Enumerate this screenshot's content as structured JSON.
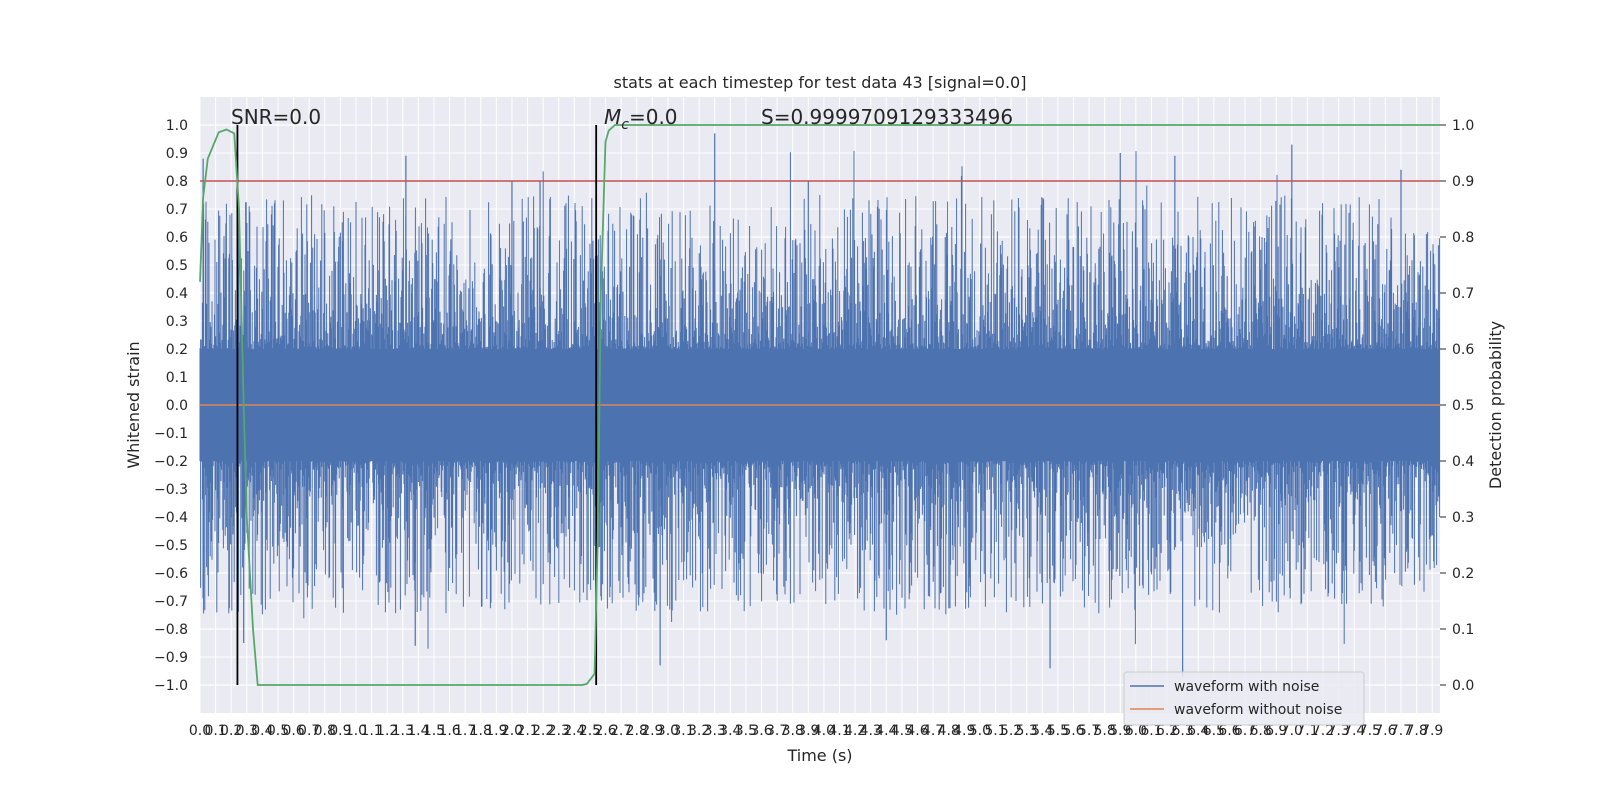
{
  "chart_data": {
    "type": "line",
    "title": "stats at each timestep for test data 43 [signal=0.0]",
    "xlabel": "Time (s)",
    "ylabel": "Whitened strain",
    "ylabel_right": "Detection probability",
    "xlim": [
      0.0,
      7.95
    ],
    "ylim": [
      -1.1,
      1.1
    ],
    "ylim_right": [
      -0.05,
      1.05
    ],
    "x_ticks": [
      "0.0",
      "0.1",
      "0.2",
      "0.3",
      "0.4",
      "0.5",
      "0.6",
      "0.7",
      "0.8",
      "0.9",
      "1.0",
      "1.1",
      "1.2",
      "1.3",
      "1.4",
      "1.5",
      "1.6",
      "1.7",
      "1.8",
      "1.9",
      "2.0",
      "2.1",
      "2.2",
      "2.3",
      "2.4",
      "2.5",
      "2.6",
      "2.7",
      "2.8",
      "2.9",
      "3.0",
      "3.1",
      "3.2",
      "3.3",
      "3.4",
      "3.5",
      "3.6",
      "3.7",
      "3.8",
      "3.9",
      "4.0",
      "4.1",
      "4.2",
      "4.3",
      "4.4",
      "4.5",
      "4.6",
      "4.7",
      "4.8",
      "4.9",
      "5.0",
      "5.1",
      "5.2",
      "5.3",
      "5.4",
      "5.5",
      "5.6",
      "5.7",
      "5.8",
      "5.9",
      "6.0",
      "6.1",
      "6.2",
      "6.3",
      "6.4",
      "6.5",
      "6.6",
      "6.7",
      "6.8",
      "6.9",
      "7.0",
      "7.1",
      "7.2",
      "7.3",
      "7.4",
      "7.5",
      "7.6",
      "7.7",
      "7.8",
      "7.9"
    ],
    "y_ticks": [
      "1.0",
      "0.9",
      "0.8",
      "0.7",
      "0.6",
      "0.5",
      "0.4",
      "0.3",
      "0.2",
      "0.1",
      "0.0",
      "-0.1",
      "-0.2",
      "-0.3",
      "-0.4",
      "-0.5",
      "-0.6",
      "-0.7",
      "-0.8",
      "-0.9",
      "-1.0"
    ],
    "y_ticks_right": [
      "1.0",
      "0.9",
      "0.8",
      "0.7",
      "0.6",
      "0.5",
      "0.4",
      "0.3",
      "0.2",
      "0.1",
      "0.0"
    ],
    "annotations": {
      "snr": "SNR=0.0",
      "mc_symbol": "M",
      "mc_sub": "c",
      "mc_value": "=0.0",
      "s": "S=0.9999709129333496"
    },
    "series": [
      {
        "name": "waveform with noise",
        "axis": "left",
        "color": "#4c72b0",
        "style": "dense noise band",
        "y_range": [
          -0.97,
          0.98
        ],
        "spikes": [
          {
            "x": 0.02,
            "y": 0.88
          },
          {
            "x": 0.02,
            "y": -0.69
          },
          {
            "x": 0.28,
            "y": -0.85
          },
          {
            "x": 0.3,
            "y": 0.65
          },
          {
            "x": 1.32,
            "y": 0.89
          },
          {
            "x": 1.38,
            "y": -0.86
          },
          {
            "x": 2.0,
            "y": 0.8
          },
          {
            "x": 2.18,
            "y": 0.8
          },
          {
            "x": 2.95,
            "y": -0.93
          },
          {
            "x": 3.3,
            "y": 0.97
          },
          {
            "x": 3.9,
            "y": 0.8
          },
          {
            "x": 4.4,
            "y": -0.84
          },
          {
            "x": 5.45,
            "y": -0.94
          },
          {
            "x": 5.9,
            "y": 0.9
          },
          {
            "x": 6.25,
            "y": 0.89
          },
          {
            "x": 6.3,
            "y": -0.97
          },
          {
            "x": 7.0,
            "y": 0.93
          },
          {
            "x": 7.7,
            "y": 0.84
          }
        ]
      },
      {
        "name": "waveform without noise",
        "axis": "left",
        "color": "#dd8452",
        "y": 0.0
      },
      {
        "name": "detection probability",
        "axis": "right",
        "color": "#55a868",
        "x": [
          0.0,
          0.02,
          0.05,
          0.12,
          0.17,
          0.22,
          0.25,
          0.28,
          0.3,
          0.34,
          0.37,
          1.0,
          2.0,
          2.45,
          2.48,
          2.53,
          2.55,
          2.57,
          2.6,
          2.62,
          2.66,
          3.0,
          5.0,
          7.95
        ],
        "y": [
          0.72,
          0.87,
          0.94,
          0.987,
          0.992,
          0.985,
          0.85,
          0.5,
          0.3,
          0.1,
          0.0,
          0.0,
          0.0,
          0.0,
          0.002,
          0.02,
          0.26,
          0.7,
          0.97,
          0.99,
          1.0,
          1.0,
          1.0,
          1.0
        ]
      },
      {
        "name": "threshold",
        "axis": "right",
        "color": "#c44e52",
        "y": 0.9
      },
      {
        "name": "marker 1",
        "type": "vline",
        "axis": "right",
        "color": "#000000",
        "x": 0.24,
        "y_range": [
          0.0,
          1.0
        ]
      },
      {
        "name": "marker 2",
        "type": "vline",
        "axis": "right",
        "color": "#000000",
        "x": 2.54,
        "y_range": [
          0.0,
          1.0
        ]
      }
    ],
    "legend": {
      "placement": "lower-right",
      "entries": [
        "waveform with noise",
        "waveform without noise"
      ]
    },
    "grid": true,
    "colors": {
      "axes_background": "#eaeaf2",
      "grid": "#ffffff",
      "text": "#262626"
    }
  }
}
